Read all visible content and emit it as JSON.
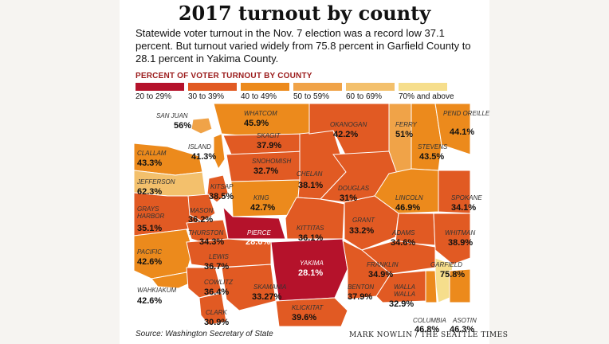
{
  "title": "2017 turnout by county",
  "subtitle": "Statewide voter turnout in the Nov. 7 election was a record low 37.1 percent. But turnout varied widely from 75.8 percent in Garfield County to 28.1 percent in Yakima County.",
  "legend": {
    "title": "PERCENT OF VOTER TURNOUT BY COUNTY",
    "items": [
      {
        "label": "20 to 29%",
        "color": "#b5122b"
      },
      {
        "label": "30 to 39%",
        "color": "#e15a23"
      },
      {
        "label": "40 to 49%",
        "color": "#ec8a1c"
      },
      {
        "label": "50 to 59%",
        "color": "#f0a348"
      },
      {
        "label": "60 to 69%",
        "color": "#f3c06c"
      },
      {
        "label": "70% and above",
        "color": "#f6de8c"
      }
    ]
  },
  "counties": [
    {
      "name": "San Juan",
      "value": "56%"
    },
    {
      "name": "Whatcom",
      "value": "45.9%"
    },
    {
      "name": "Okanogan",
      "value": "42.2%"
    },
    {
      "name": "Ferry",
      "value": "51%"
    },
    {
      "name": "Pend Oreille",
      "value": "44.1%"
    },
    {
      "name": "Island",
      "value": "41.3%"
    },
    {
      "name": "Skagit",
      "value": "37.9%"
    },
    {
      "name": "Stevens",
      "value": "43.5%"
    },
    {
      "name": "Clallam",
      "value": "43.3%"
    },
    {
      "name": "Snohomish",
      "value": "32.7%"
    },
    {
      "name": "Chelan",
      "value": "38.1%"
    },
    {
      "name": "Jefferson",
      "value": "62.3%"
    },
    {
      "name": "Kitsap",
      "value": "38.5%"
    },
    {
      "name": "Douglas",
      "value": "31%"
    },
    {
      "name": "King",
      "value": "42.7%"
    },
    {
      "name": "Lincoln",
      "value": "46.9%"
    },
    {
      "name": "Spokane",
      "value": "34.1%"
    },
    {
      "name": "Grays Harbor",
      "value": "35.1%"
    },
    {
      "name": "Mason",
      "value": "36.2%"
    },
    {
      "name": "Grant",
      "value": "33.2%"
    },
    {
      "name": "Kittitas",
      "value": "36.1%"
    },
    {
      "name": "Pierce",
      "value": "28.6%"
    },
    {
      "name": "Thurston",
      "value": "34.3%"
    },
    {
      "name": "Adams",
      "value": "34.6%"
    },
    {
      "name": "Whitman",
      "value": "38.9%"
    },
    {
      "name": "Pacific",
      "value": "42.6%"
    },
    {
      "name": "Lewis",
      "value": "36.7%"
    },
    {
      "name": "Yakima",
      "value": "28.1%"
    },
    {
      "name": "Franklin",
      "value": "34.9%"
    },
    {
      "name": "Garfield",
      "value": "75.8%"
    },
    {
      "name": "Wahkiakum",
      "value": "42.6%"
    },
    {
      "name": "Cowlitz",
      "value": "36.4%"
    },
    {
      "name": "Skamania",
      "value": "33.27%"
    },
    {
      "name": "Benton",
      "value": "37.9%"
    },
    {
      "name": "Walla Walla",
      "value": "32.9%"
    },
    {
      "name": "Clark",
      "value": "30.9%"
    },
    {
      "name": "Klickitat",
      "value": "39.6%"
    },
    {
      "name": "Columbia",
      "value": "46.8%"
    },
    {
      "name": "Asotin",
      "value": "46.3%"
    }
  ],
  "source": "Source: Washington Secretary of State",
  "credit": "MARK NOWLIN / THE SEATTLE TIMES"
}
